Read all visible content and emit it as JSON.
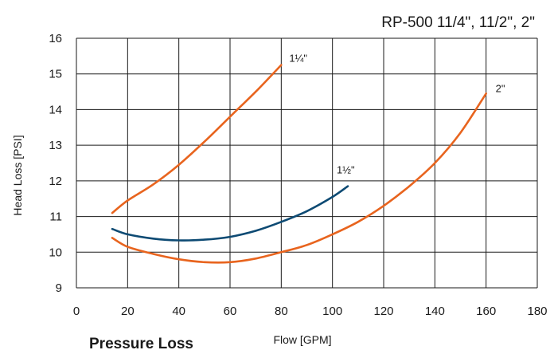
{
  "chart_data": {
    "type": "line",
    "title": "RP-500  11/4\", 11/2\", 2\"",
    "xlabel": "Flow [GPM]",
    "ylabel": "Head Loss [PSI]",
    "caption": "Pressure Loss",
    "xlim": [
      0,
      180
    ],
    "ylim": [
      9,
      16
    ],
    "xticks": [
      0,
      20,
      40,
      60,
      80,
      100,
      120,
      140,
      160,
      180
    ],
    "yticks": [
      9,
      10,
      11,
      12,
      13,
      14,
      15,
      16
    ],
    "grid": true,
    "series": [
      {
        "name": "1¼\"",
        "color": "#e8641e",
        "x": [
          14,
          20,
          30,
          40,
          50,
          60,
          70,
          80
        ],
        "y": [
          11.1,
          11.45,
          11.9,
          12.45,
          13.1,
          13.8,
          14.5,
          15.25
        ]
      },
      {
        "name": "1½\"",
        "color": "#0d4a73",
        "x": [
          14,
          20,
          30,
          40,
          50,
          60,
          70,
          80,
          90,
          100,
          106
        ],
        "y": [
          10.65,
          10.5,
          10.38,
          10.33,
          10.35,
          10.43,
          10.6,
          10.85,
          11.15,
          11.55,
          11.85
        ]
      },
      {
        "name": "2\"",
        "color": "#e8641e",
        "x": [
          14,
          20,
          30,
          40,
          50,
          60,
          70,
          80,
          90,
          100,
          110,
          120,
          130,
          140,
          150,
          160
        ],
        "y": [
          10.4,
          10.15,
          9.95,
          9.8,
          9.72,
          9.72,
          9.82,
          10.0,
          10.2,
          10.5,
          10.85,
          11.3,
          11.85,
          12.5,
          13.35,
          14.45
        ]
      }
    ]
  }
}
